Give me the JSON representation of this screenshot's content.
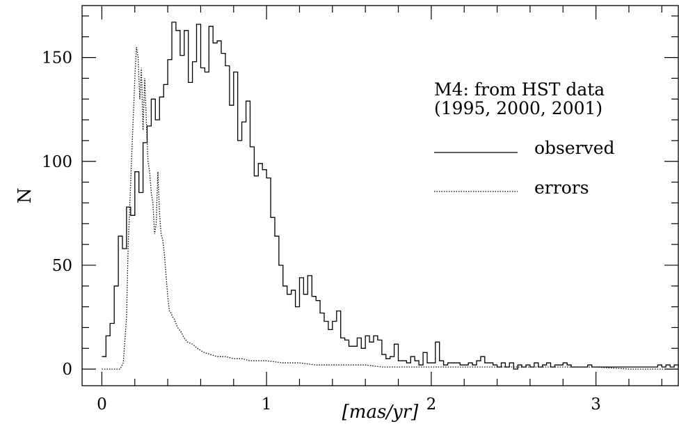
{
  "chart_data": {
    "type": "line",
    "title": "",
    "xlabel": "[mas/yr]",
    "ylabel": "N",
    "xlim": [
      -0.12,
      3.5
    ],
    "ylim": [
      -8,
      175
    ],
    "x_ticks": [
      0,
      1,
      2,
      3
    ],
    "x_tick_labels": [
      "0",
      "1",
      "2",
      "3"
    ],
    "y_ticks": [
      0,
      50,
      100,
      150
    ],
    "y_tick_labels": [
      "0",
      "50",
      "100",
      "150"
    ],
    "annotation": [
      "M4: from HST data",
      "(1995, 2000, 2001)"
    ],
    "legend_position": "right",
    "series": [
      {
        "name": "observed",
        "style": "solid-step",
        "color": "#000000",
        "bin_width": 0.025,
        "x_start": 0.0,
        "values": [
          6,
          16,
          22,
          40,
          64,
          58,
          78,
          74,
          95,
          85,
          109,
          117,
          130,
          120,
          131,
          137,
          149,
          167,
          163,
          151,
          163,
          138,
          148,
          166,
          145,
          143,
          165,
          157,
          158,
          152,
          146,
          127,
          143,
          110,
          119,
          129,
          107,
          93,
          99,
          96,
          92,
          73,
          64,
          50,
          40,
          36,
          38,
          30,
          44,
          36,
          45,
          35,
          33,
          27,
          23,
          19,
          23,
          28,
          15,
          14,
          11,
          11,
          15,
          10,
          16,
          13,
          16,
          14,
          7,
          5,
          6,
          12,
          4,
          4,
          3,
          6,
          4,
          2,
          8,
          3,
          3,
          13,
          4,
          2,
          3,
          3,
          3,
          2,
          2,
          3,
          2,
          4,
          6,
          3,
          3,
          2,
          1,
          3,
          1,
          3,
          0,
          2,
          1,
          2,
          1,
          3,
          1,
          2,
          3,
          1,
          2,
          2,
          3,
          2,
          1,
          1,
          1,
          1,
          2,
          1,
          1,
          1,
          1,
          1,
          1,
          1,
          1,
          1,
          1,
          1,
          1,
          1,
          1,
          1,
          1,
          2,
          1,
          2,
          1,
          2,
          1
        ]
      },
      {
        "name": "errors",
        "style": "dotted",
        "color": "#000000",
        "x": [
          0.0,
          0.1,
          0.11,
          0.13,
          0.15,
          0.16,
          0.17,
          0.18,
          0.19,
          0.2,
          0.21,
          0.22,
          0.23,
          0.24,
          0.25,
          0.26,
          0.27,
          0.28,
          0.29,
          0.3,
          0.31,
          0.32,
          0.33,
          0.34,
          0.35,
          0.36,
          0.37,
          0.38,
          0.39,
          0.4,
          0.41,
          0.42,
          0.43,
          0.44,
          0.45,
          0.46,
          0.48,
          0.5,
          0.52,
          0.55,
          0.58,
          0.62,
          0.66,
          0.7,
          0.75,
          0.8,
          0.85,
          0.9,
          1.0,
          1.1,
          1.2,
          1.3,
          1.4,
          1.5,
          1.6,
          1.7,
          1.8,
          2.0,
          2.2,
          2.4,
          2.6,
          2.8,
          3.0,
          3.2,
          3.5
        ],
        "y": [
          0,
          0,
          0,
          3,
          25,
          60,
          80,
          100,
          120,
          140,
          155,
          150,
          130,
          145,
          115,
          140,
          120,
          100,
          95,
          85,
          80,
          65,
          70,
          95,
          75,
          65,
          62,
          55,
          45,
          35,
          28,
          27,
          25,
          24,
          22,
          20,
          18,
          15,
          13,
          12,
          10,
          8,
          7,
          6,
          6,
          5,
          5,
          4,
          4,
          3,
          3,
          2,
          2,
          2,
          2,
          1,
          1,
          1,
          1,
          1,
          1,
          1,
          1,
          0,
          0
        ]
      }
    ]
  }
}
